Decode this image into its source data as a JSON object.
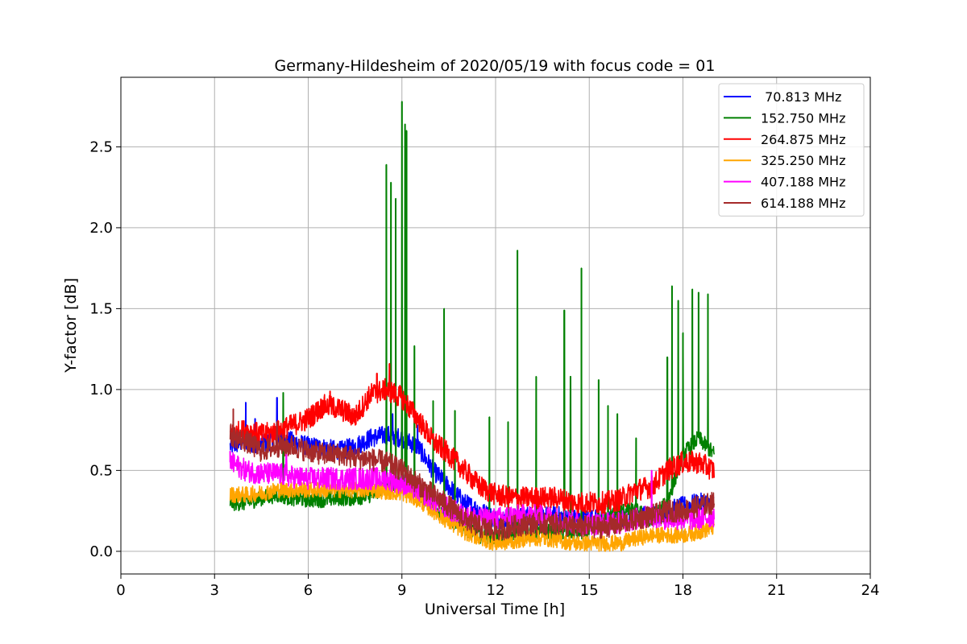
{
  "chart_data": {
    "type": "line",
    "title": "Germany-Hildesheim of 2020/05/19 with focus code = 01",
    "xlabel": "Universal Time [h]",
    "ylabel": "Y-factor [dB]",
    "xlim": [
      0,
      24
    ],
    "ylim": [
      -0.14,
      2.93
    ],
    "xticks": [
      0,
      3,
      6,
      9,
      12,
      15,
      18,
      21,
      24
    ],
    "xtick_labels": [
      "0",
      "3",
      "6",
      "9",
      "12",
      "15",
      "18",
      "21",
      "24"
    ],
    "yticks": [
      0.0,
      0.5,
      1.0,
      1.5,
      2.0,
      2.5
    ],
    "ytick_labels": [
      "0.0",
      "0.5",
      "1.0",
      "1.5",
      "2.0",
      "2.5"
    ],
    "grid": true,
    "legend_position": "top-right",
    "x": [
      3.5,
      4.0,
      4.5,
      5.0,
      5.5,
      6.0,
      6.5,
      7.0,
      7.5,
      8.0,
      8.5,
      9.0,
      9.5,
      10.0,
      10.5,
      11.0,
      11.5,
      12.0,
      12.5,
      13.0,
      13.5,
      14.0,
      14.5,
      15.0,
      15.5,
      16.0,
      16.5,
      17.0,
      17.5,
      18.0,
      18.5,
      19.0
    ],
    "series": [
      {
        "name": " 70.813 MHz",
        "color": "#0000ff",
        "values": [
          0.65,
          0.68,
          0.66,
          0.7,
          0.68,
          0.65,
          0.64,
          0.62,
          0.65,
          0.7,
          0.72,
          0.7,
          0.65,
          0.5,
          0.4,
          0.3,
          0.25,
          0.2,
          0.2,
          0.22,
          0.22,
          0.22,
          0.2,
          0.2,
          0.2,
          0.2,
          0.22,
          0.22,
          0.25,
          0.28,
          0.3,
          0.3
        ],
        "spikes": [
          [
            4.0,
            0.92
          ],
          [
            4.3,
            0.82
          ],
          [
            5.0,
            0.95
          ],
          [
            8.7,
            0.85
          ],
          [
            9.5,
            0.78
          ]
        ]
      },
      {
        "name": "152.750 MHz",
        "color": "#008000",
        "values": [
          0.3,
          0.3,
          0.33,
          0.35,
          0.33,
          0.32,
          0.32,
          0.33,
          0.33,
          0.35,
          0.4,
          0.45,
          0.35,
          0.28,
          0.2,
          0.15,
          0.1,
          0.08,
          0.1,
          0.12,
          0.12,
          0.12,
          0.12,
          0.12,
          0.2,
          0.25,
          0.25,
          0.2,
          0.3,
          0.6,
          0.7,
          0.6
        ],
        "spikes": [
          [
            5.2,
            0.98
          ],
          [
            8.5,
            2.39
          ],
          [
            8.65,
            2.28
          ],
          [
            8.8,
            2.18
          ],
          [
            9.0,
            2.78
          ],
          [
            9.1,
            2.64
          ],
          [
            9.15,
            2.6
          ],
          [
            9.4,
            1.27
          ],
          [
            10.0,
            0.93
          ],
          [
            10.35,
            1.5
          ],
          [
            10.7,
            0.87
          ],
          [
            11.8,
            0.83
          ],
          [
            12.4,
            0.8
          ],
          [
            12.7,
            1.86
          ],
          [
            13.3,
            1.08
          ],
          [
            14.2,
            1.49
          ],
          [
            14.4,
            1.08
          ],
          [
            14.75,
            1.75
          ],
          [
            15.3,
            1.06
          ],
          [
            15.6,
            0.9
          ],
          [
            15.9,
            0.85
          ],
          [
            16.5,
            0.7
          ],
          [
            17.5,
            1.2
          ],
          [
            17.65,
            1.64
          ],
          [
            17.85,
            1.55
          ],
          [
            18.0,
            1.35
          ],
          [
            18.3,
            1.62
          ],
          [
            18.5,
            1.6
          ],
          [
            18.8,
            1.59
          ]
        ]
      },
      {
        "name": "264.875 MHz",
        "color": "#ff0000",
        "values": [
          0.72,
          0.75,
          0.72,
          0.74,
          0.78,
          0.82,
          0.9,
          0.88,
          0.83,
          0.97,
          1.0,
          0.95,
          0.82,
          0.68,
          0.6,
          0.5,
          0.4,
          0.35,
          0.33,
          0.33,
          0.33,
          0.33,
          0.3,
          0.3,
          0.3,
          0.32,
          0.38,
          0.4,
          0.5,
          0.55,
          0.55,
          0.5
        ],
        "spikes": [
          [
            8.6,
            1.16
          ],
          [
            8.2,
            1.1
          ],
          [
            6.7,
            0.99
          ]
        ]
      },
      {
        "name": "325.250 MHz",
        "color": "#ffa500",
        "values": [
          0.35,
          0.35,
          0.36,
          0.38,
          0.38,
          0.38,
          0.38,
          0.38,
          0.38,
          0.38,
          0.37,
          0.36,
          0.32,
          0.25,
          0.18,
          0.12,
          0.08,
          0.05,
          0.06,
          0.08,
          0.08,
          0.07,
          0.05,
          0.05,
          0.05,
          0.05,
          0.08,
          0.1,
          0.1,
          0.1,
          0.12,
          0.15
        ],
        "spikes": []
      },
      {
        "name": "407.188 MHz",
        "color": "#ff00ff",
        "values": [
          0.55,
          0.5,
          0.48,
          0.48,
          0.46,
          0.45,
          0.45,
          0.45,
          0.45,
          0.45,
          0.45,
          0.42,
          0.38,
          0.32,
          0.26,
          0.22,
          0.2,
          0.2,
          0.22,
          0.22,
          0.22,
          0.2,
          0.18,
          0.17,
          0.17,
          0.18,
          0.2,
          0.22,
          0.2,
          0.2,
          0.2,
          0.22
        ],
        "spikes": [
          [
            3.5,
            0.62
          ],
          [
            5.3,
            0.6
          ],
          [
            17.0,
            0.5
          ]
        ]
      },
      {
        "name": "614.188 MHz",
        "color": "#a52a2a",
        "values": [
          0.72,
          0.68,
          0.62,
          0.65,
          0.65,
          0.62,
          0.6,
          0.6,
          0.58,
          0.57,
          0.55,
          0.5,
          0.42,
          0.35,
          0.28,
          0.2,
          0.15,
          0.13,
          0.15,
          0.17,
          0.17,
          0.17,
          0.15,
          0.15,
          0.15,
          0.17,
          0.2,
          0.22,
          0.25,
          0.25,
          0.28,
          0.3
        ],
        "spikes": [
          [
            3.6,
            0.88
          ],
          [
            5.0,
            0.8
          ]
        ]
      }
    ]
  }
}
